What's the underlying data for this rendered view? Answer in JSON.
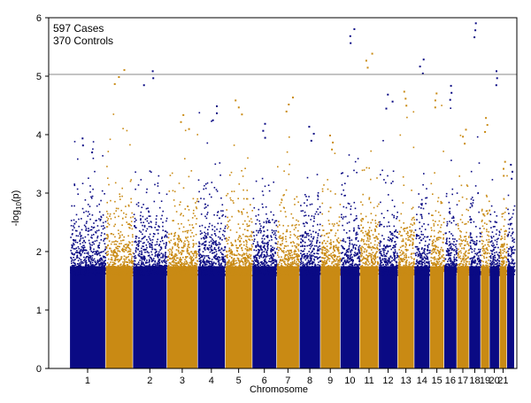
{
  "chart_data": {
    "type": "scatter",
    "subtype": "manhattan",
    "title": "",
    "annotations": [
      "597 Cases",
      "370 Controls"
    ],
    "xlabel": "Chromosome",
    "ylabel_main": "-log",
    "ylabel_sub": "10",
    "ylabel_tail": "(p)",
    "ylim": [
      0,
      6
    ],
    "yticks": [
      0,
      1,
      2,
      3,
      4,
      5,
      6
    ],
    "threshold": 5.03,
    "colors": {
      "odd": "#0a0a84",
      "even": "#c98a14",
      "threshold_line": "#888888",
      "axis": "#000000"
    },
    "grid": false,
    "legend": "none",
    "chromosomes": [
      {
        "label": "1",
        "start": 0,
        "end": 248,
        "peak": 3.95
      },
      {
        "label": "",
        "start": 252,
        "end": 440,
        "peak": 5.12
      },
      {
        "label": "2",
        "start": 444,
        "end": 680,
        "peak": 5.1
      },
      {
        "label": "3",
        "start": 684,
        "end": 896,
        "peak": 4.35
      },
      {
        "label": "4",
        "start": 900,
        "end": 1090,
        "peak": 4.5
      },
      {
        "label": "5",
        "start": 1094,
        "end": 1280,
        "peak": 4.6
      },
      {
        "label": "6",
        "start": 1284,
        "end": 1452,
        "peak": 4.2
      },
      {
        "label": "7",
        "start": 1456,
        "end": 1612,
        "peak": 4.65
      },
      {
        "label": "8",
        "start": 1616,
        "end": 1760,
        "peak": 4.15
      },
      {
        "label": "9",
        "start": 1764,
        "end": 1900,
        "peak": 4.0
      },
      {
        "label": "10",
        "start": 1904,
        "end": 2036,
        "peak": 5.82
      },
      {
        "label": "11",
        "start": 2040,
        "end": 2170,
        "peak": 5.4
      },
      {
        "label": "12",
        "start": 2174,
        "end": 2304,
        "peak": 4.7
      },
      {
        "label": "13",
        "start": 2308,
        "end": 2420,
        "peak": 4.75
      },
      {
        "label": "14",
        "start": 2424,
        "end": 2530,
        "peak": 5.3
      },
      {
        "label": "15",
        "start": 2534,
        "end": 2630,
        "peak": 4.72
      },
      {
        "label": "16",
        "start": 2634,
        "end": 2720,
        "peak": 4.85
      },
      {
        "label": "17",
        "start": 2724,
        "end": 2806,
        "peak": 4.1
      },
      {
        "label": "18",
        "start": 2810,
        "end": 2888,
        "peak": 5.92
      },
      {
        "label": "19",
        "start": 2892,
        "end": 2950,
        "peak": 4.3
      },
      {
        "label": "20",
        "start": 2954,
        "end": 3020,
        "peak": 5.1
      },
      {
        "label": "21",
        "start": 3024,
        "end": 3072,
        "peak": 3.55
      },
      {
        "label": "",
        "start": 3076,
        "end": 3126,
        "peak": 3.5
      }
    ],
    "xlim": [
      -150,
      3145
    ]
  }
}
